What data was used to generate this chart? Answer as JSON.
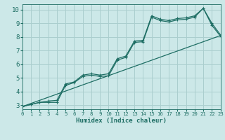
{
  "xlabel": "Humidex (Indice chaleur)",
  "ylabel": "",
  "bg_color": "#cce8e8",
  "grid_color": "#aacece",
  "line_color": "#1e6e64",
  "xlim": [
    0,
    23
  ],
  "ylim": [
    2.7,
    10.4
  ],
  "xticks": [
    0,
    1,
    2,
    3,
    4,
    5,
    6,
    7,
    8,
    9,
    10,
    11,
    12,
    13,
    14,
    15,
    16,
    17,
    18,
    19,
    20,
    21,
    22,
    23
  ],
  "yticks": [
    3,
    4,
    5,
    6,
    7,
    8,
    9,
    10
  ],
  "line1_x": [
    0,
    1,
    2,
    3,
    4,
    5,
    6,
    7,
    8,
    9,
    10,
    11,
    12,
    13,
    14,
    15,
    16,
    17,
    18,
    19,
    20,
    21,
    22,
    23
  ],
  "line1_y": [
    2.9,
    3.05,
    3.2,
    3.3,
    3.35,
    4.55,
    4.7,
    5.2,
    5.3,
    5.2,
    5.3,
    6.4,
    6.6,
    7.7,
    7.75,
    9.55,
    9.3,
    9.2,
    9.35,
    9.4,
    9.55,
    10.1,
    9.0,
    8.15
  ],
  "line2_x": [
    0,
    1,
    2,
    3,
    4,
    5,
    6,
    7,
    8,
    9,
    10,
    11,
    12,
    13,
    14,
    15,
    16,
    17,
    18,
    19,
    20,
    21,
    22,
    23
  ],
  "line2_y": [
    2.9,
    3.05,
    3.2,
    3.2,
    3.2,
    4.45,
    4.65,
    5.1,
    5.2,
    5.1,
    5.15,
    6.3,
    6.5,
    7.6,
    7.65,
    9.45,
    9.2,
    9.1,
    9.25,
    9.3,
    9.45,
    10.1,
    8.85,
    8.05
  ],
  "line3_x": [
    0,
    23
  ],
  "line3_y": [
    2.9,
    8.1
  ]
}
